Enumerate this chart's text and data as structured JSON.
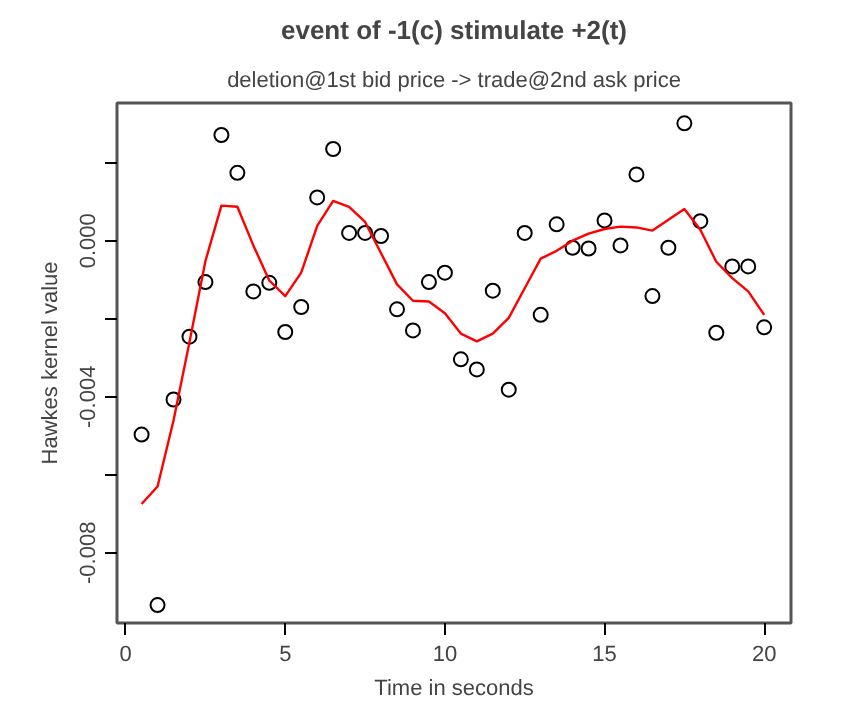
{
  "chart_data": {
    "type": "scatter",
    "title": "event of -1(c) stimulate +2(t)",
    "subtitle": "deletion@1st bid price -> trade@2nd ask price",
    "xlabel": "Time in seconds",
    "ylabel": "Hawkes kernel value",
    "x": [
      0.5,
      1,
      1.5,
      2,
      2.5,
      3,
      3.5,
      4,
      4.5,
      5,
      5.5,
      6,
      6.5,
      7,
      7.5,
      8,
      8.5,
      9,
      9.5,
      10,
      10.5,
      11,
      11.5,
      12,
      12.5,
      13,
      13.5,
      14,
      14.5,
      15,
      15.5,
      16,
      16.5,
      17,
      17.5,
      18,
      18.5,
      19,
      19.5,
      20
    ],
    "series": [
      {
        "color": "#000000",
        "marker": "circle",
        "values": [
          -0.00497,
          -0.00934,
          -0.00407,
          -0.00246,
          -0.00106,
          0.00271,
          0.00174,
          -0.0013,
          -0.00108,
          -0.00234,
          -0.0017,
          0.00111,
          0.00235,
          0.0002,
          0.0002,
          0.00012,
          -0.00176,
          -0.0023,
          -0.00106,
          -0.00082,
          -0.00304,
          -0.0033,
          -0.00128,
          -0.00382,
          0.0002,
          -0.0019,
          0.00042,
          -0.00018,
          -0.0002,
          0.00052,
          -0.00012,
          0.0017,
          -0.00142,
          -0.00018,
          0.00301,
          0.0005,
          -0.00236,
          -0.00066,
          -0.00066,
          -0.00222
        ]
      },
      {
        "type": "line",
        "color": "#ff0000",
        "marker": "none",
        "line_style": "solid",
        "values": [
          -0.00675,
          -0.0063,
          -0.00461,
          -0.0026,
          -0.00052,
          0.0009,
          0.00087,
          -0.00012,
          -0.00102,
          -0.00142,
          -0.00082,
          0.00038,
          0.00102,
          0.00087,
          0.00048,
          -0.00032,
          -0.00112,
          -0.00154,
          -0.00156,
          -0.00186,
          -0.00238,
          -0.00258,
          -0.00238,
          -0.00198,
          -0.00122,
          -0.00046,
          -0.00026,
          0.0,
          0.00018,
          0.0003,
          0.00036,
          0.00034,
          0.00026,
          0.00054,
          0.00081,
          0.00028,
          -0.00054,
          -0.00096,
          -0.0013,
          -0.0019
        ]
      }
    ],
    "xlim": [
      -0.27,
      20.84
    ],
    "ylim": [
      -0.0098,
      0.00353
    ],
    "xticks": [
      0,
      5,
      10,
      15,
      20
    ],
    "yticks": [
      {
        "value": -0.008,
        "label": "-0.008"
      },
      {
        "value": -0.006,
        "label": null
      },
      {
        "value": -0.004,
        "label": "-0.004"
      },
      {
        "value": -0.002,
        "label": null
      },
      {
        "value": 0,
        "label": "0.000"
      },
      {
        "value": 0.002,
        "label": null
      }
    ],
    "grid": false
  }
}
